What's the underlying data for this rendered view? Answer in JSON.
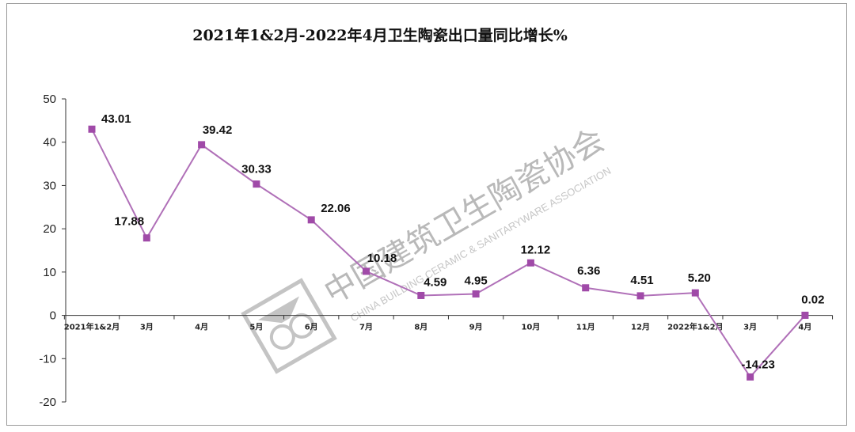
{
  "chart_data": {
    "type": "line",
    "title": "2021年1&2月-2022年4月卫生陶瓷出口量同比增长%",
    "categories": [
      "2021年1&2月",
      "3月",
      "4月",
      "5月",
      "6月",
      "7月",
      "8月",
      "9月",
      "10月",
      "11月",
      "12月",
      "2022年1&2月",
      "3月",
      "4月"
    ],
    "series": [
      {
        "values": [
          43.01,
          17.88,
          39.42,
          30.33,
          22.06,
          10.18,
          4.59,
          4.95,
          12.12,
          6.36,
          4.51,
          5.2,
          -14.23,
          0.02
        ]
      }
    ],
    "value_labels": [
      "43.01",
      "17.88",
      "39.42",
      "30.33",
      "22.06",
      "10.18",
      "4.59",
      "4.95",
      "12.12",
      "6.36",
      "4.51",
      "5.20",
      "-14.23",
      "0.02"
    ],
    "y_ticks": [
      "50",
      "40",
      "30",
      "20",
      "10",
      "0",
      "-10",
      "-20"
    ],
    "ylim": [
      -20,
      50
    ],
    "xlabel": "",
    "ylabel": "",
    "grid": false,
    "legend": "none",
    "line_color": "#b070b8",
    "marker_color": "#a04aa8"
  },
  "watermark": {
    "text": "中国建筑卫生陶瓷协会",
    "subtext": "CHINA BUILDING CERAMIC & SANITARYWARE ASSOCIATION",
    "color": "#bbbbbb"
  }
}
